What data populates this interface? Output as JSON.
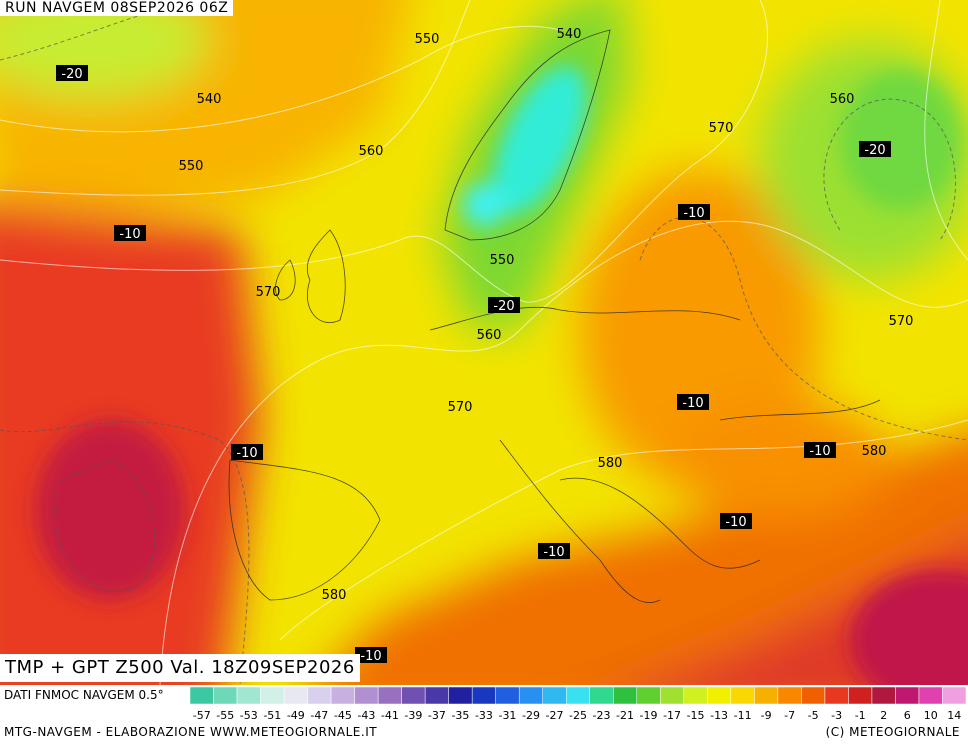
{
  "header": {
    "title": "RUN NAVGEM 08SEP2026 06Z"
  },
  "map": {
    "caption": "TMP + GPT Z500 Val. 18Z09SEP2026",
    "height_labels": [
      550,
      540,
      540,
      560,
      550,
      560,
      570,
      550,
      570,
      560,
      570,
      570,
      580,
      580,
      580
    ],
    "temperature_labels": [
      -20,
      -20,
      -10,
      -10,
      -20,
      -10,
      -10,
      -10,
      -10,
      -10,
      -10
    ]
  },
  "legend": {
    "source": "DATI FNMOC NAVGEM 0.5°",
    "ticks": [
      -57,
      -55,
      -53,
      -51,
      -49,
      -47,
      -45,
      -43,
      -41,
      -39,
      -37,
      -35,
      -33,
      -31,
      -29,
      -27,
      -25,
      -23,
      -21,
      -19,
      -17,
      -15,
      -13,
      -11,
      -9,
      -7,
      -5,
      -3,
      -1,
      2,
      6,
      10,
      14
    ],
    "colors": [
      "#3cc8a0",
      "#6ed8b8",
      "#a0e6d0",
      "#d0f0e8",
      "#e8e8f0",
      "#d8d0ec",
      "#c8b0e0",
      "#b090d0",
      "#9870c0",
      "#7050b0",
      "#4838a8",
      "#2020a0",
      "#1838c0",
      "#2060e0",
      "#2890f0",
      "#30b8f0",
      "#38e0f0",
      "#30d890",
      "#30c040",
      "#60d030",
      "#a0e030",
      "#d0f020",
      "#f0f000",
      "#f8d800",
      "#f8b000",
      "#f88800",
      "#f06000",
      "#e83820",
      "#d02020",
      "#b01840",
      "#c01870",
      "#e040b0",
      "#f0a0e0"
    ]
  },
  "footer": {
    "credit": "MTG-NAVGEM - ELABORAZIONE WWW.METEOGIORNALE.IT",
    "copyright": "(C) METEOGIORNALE"
  }
}
